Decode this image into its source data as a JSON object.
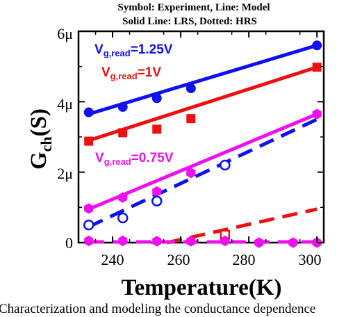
{
  "chart_data": {
    "type": "line",
    "header_lines": [
      "Symbol: Experiment, Line: Model",
      "Solid Line: LRS, Dotted: HRS"
    ],
    "xlabel": "Temperature(K)",
    "ylabel": {
      "main": "G",
      "sub": "ch",
      "unit": "(S)"
    },
    "xlim": [
      230,
      302
    ],
    "ylim": [
      0,
      6
    ],
    "x_ticks": [
      240,
      260,
      280,
      300
    ],
    "x_tick_labels": [
      "240",
      "260",
      "280",
      "300"
    ],
    "y_ticks": [
      0,
      2,
      4,
      6
    ],
    "y_tick_labels": [
      "0",
      "2μ",
      "4μ",
      "6μ"
    ],
    "grid": false,
    "annotations": [
      {
        "prefix": "V",
        "sub": "g,read",
        "suffix": "=1.25V",
        "color": "#1010ee"
      },
      {
        "prefix": "V",
        "sub": "g,read",
        "suffix": "=1V",
        "color": "#ee1010"
      },
      {
        "prefix": "V",
        "sub": "g,read",
        "suffix": "=0.75V",
        "color": "#ee10ee"
      }
    ],
    "series": [
      {
        "state": "LRS",
        "color": "#1010ee",
        "marker": "circle",
        "filled": true,
        "x": [
          233,
          243,
          253,
          263,
          300
        ],
        "y": [
          3.7,
          3.85,
          4.1,
          4.38,
          5.6
        ],
        "model": {
          "style": "solid",
          "x": [
            233,
            300
          ],
          "y": [
            3.65,
            5.6
          ]
        }
      },
      {
        "state": "LRS",
        "color": "#ee1010",
        "marker": "square",
        "filled": true,
        "x": [
          233,
          243,
          253,
          263,
          300
        ],
        "y": [
          2.88,
          3.12,
          3.22,
          3.52,
          4.98
        ],
        "model": {
          "style": "solid",
          "x": [
            233,
            300
          ],
          "y": [
            2.9,
            4.98
          ]
        }
      },
      {
        "state": "LRS",
        "color": "#ee10ee",
        "marker": "hexagon",
        "filled": true,
        "x": [
          233,
          243,
          253,
          263,
          300
        ],
        "y": [
          0.97,
          1.28,
          1.45,
          1.98,
          3.65
        ],
        "model": {
          "style": "solid",
          "x": [
            233,
            300
          ],
          "y": [
            0.95,
            3.65
          ]
        }
      },
      {
        "state": "HRS",
        "color": "#1010ee",
        "marker": "circle",
        "filled": false,
        "x": [
          233,
          243,
          253,
          273
        ],
        "y": [
          0.5,
          0.7,
          1.18,
          2.2
        ],
        "model": {
          "style": "dashed",
          "x": [
            233,
            300
          ],
          "y": [
            0.45,
            3.5
          ]
        }
      },
      {
        "state": "HRS",
        "color": "#ee1010",
        "marker": "square",
        "filled": false,
        "x": [
          273
        ],
        "y": [
          0.22
        ],
        "model": {
          "style": "dashed",
          "x": [
            256,
            300
          ],
          "y": [
            0.0,
            0.95
          ]
        }
      },
      {
        "state": "HRS",
        "color": "#ee10ee",
        "marker": "hexagon",
        "filled": true,
        "x": [
          233,
          243,
          253,
          263,
          273,
          283,
          293,
          300
        ],
        "y": [
          0.05,
          0.05,
          0.04,
          0.04,
          0.05,
          0.0,
          0.0,
          0.0
        ],
        "model": {
          "style": "dashed",
          "x": [
            233,
            300
          ],
          "y": [
            0.02,
            0.02
          ]
        }
      }
    ]
  },
  "caption": "Characterization and modeling the conductance dependence"
}
